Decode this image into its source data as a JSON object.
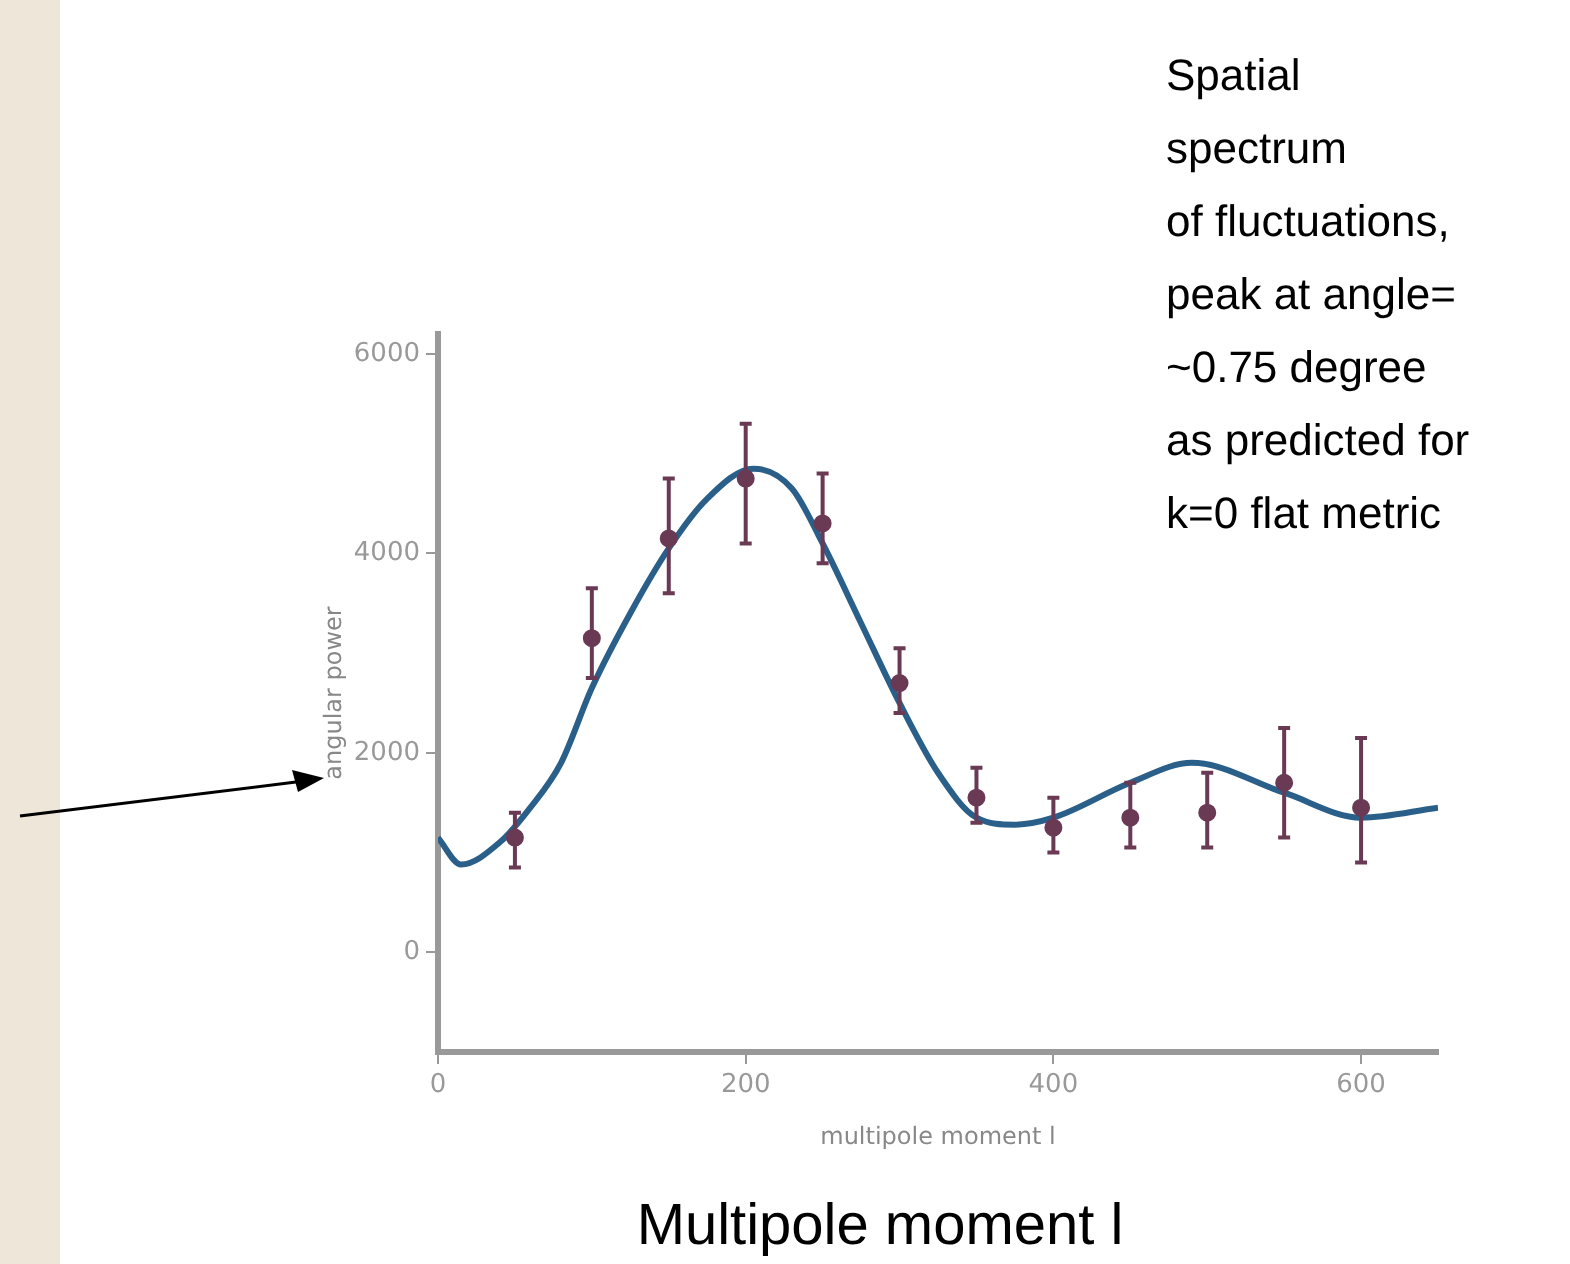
{
  "chart_data": {
    "type": "line",
    "xlabel": "multipole moment l",
    "ylabel": "angular power",
    "xlim": [
      0,
      650
    ],
    "xticks": [
      0,
      200,
      400,
      600
    ],
    "ylim": [
      -1000,
      6200
    ],
    "yticks": [
      0,
      2000,
      4000,
      6000
    ],
    "grid": false,
    "legend": false,
    "series": [
      {
        "type": "line",
        "color": "#2a5f8a",
        "marker": "none",
        "line_style": "solid",
        "x": [
          0,
          15,
          40,
          60,
          80,
          100,
          125,
          150,
          175,
          205,
          230,
          250,
          275,
          300,
          325,
          350,
          375,
          400,
          450,
          490,
          550,
          600,
          650
        ],
        "values": [
          1150,
          880,
          1100,
          1450,
          1900,
          2650,
          3400,
          4050,
          4550,
          4850,
          4650,
          4100,
          3300,
          2500,
          1800,
          1350,
          1280,
          1350,
          1700,
          1900,
          1600,
          1350,
          1450
        ]
      },
      {
        "type": "scatter",
        "color": "#6a3a55",
        "marker": "circle",
        "x": [
          50,
          100,
          150,
          200,
          250,
          300,
          350,
          400,
          450,
          500,
          550,
          600
        ],
        "values": [
          1150,
          3150,
          4150,
          4750,
          4300,
          2700,
          1550,
          1250,
          1350,
          1400,
          1700,
          1450
        ],
        "errors": [
          [
            850,
            1400
          ],
          [
            2750,
            3650
          ],
          [
            3600,
            4750
          ],
          [
            4100,
            5300
          ],
          [
            3900,
            4800
          ],
          [
            2400,
            3050
          ],
          [
            1300,
            1850
          ],
          [
            1000,
            1550
          ],
          [
            1050,
            1700
          ],
          [
            1050,
            1800
          ],
          [
            1150,
            2250
          ],
          [
            900,
            2150
          ]
        ]
      }
    ],
    "annotations": [
      "Spatial\nspectrum\nof fluctuations,\npeak at angle=\n~0.75 degree\nas predicted for\nk=0 flat metric",
      "Multipole moment l"
    ]
  }
}
